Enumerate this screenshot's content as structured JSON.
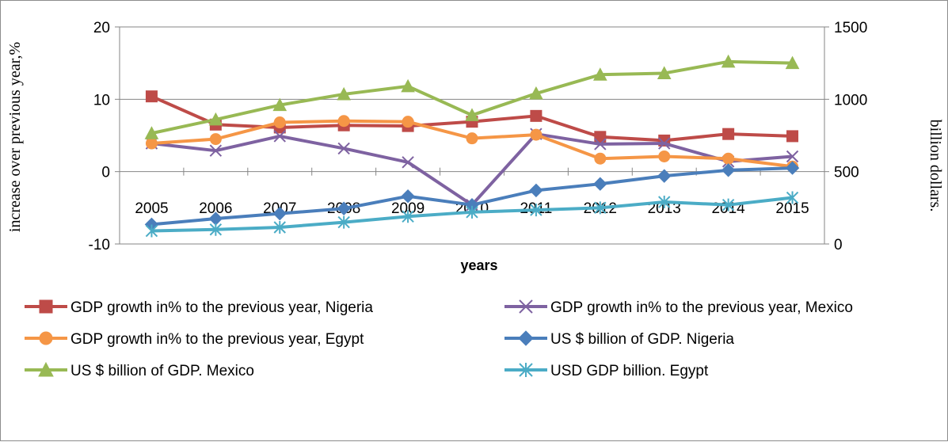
{
  "chart_data": {
    "type": "line",
    "xlabel": "years",
    "ylabel_left": "increase over previous year,%",
    "ylabel_right": "billion dollars.",
    "ylim_left": [
      -10,
      20
    ],
    "yticks_left": [
      -10,
      0,
      10,
      20
    ],
    "ylim_right": [
      0,
      1500
    ],
    "yticks_right": [
      0,
      500,
      1000,
      1500
    ],
    "grid": true,
    "legend_position": "bottom",
    "categories": [
      "2005",
      "2006",
      "2007",
      "2008",
      "2009",
      "2010",
      "2011",
      "2012",
      "2013",
      "2014",
      "2015"
    ],
    "series": [
      {
        "name": "GDP growth in% to the previous year, Nigeria",
        "axis": "left",
        "color": "#BE4B48",
        "marker": "square",
        "values": [
          10.4,
          6.5,
          6.1,
          6.4,
          6.3,
          6.9,
          7.7,
          4.8,
          4.3,
          5.2,
          4.9
        ]
      },
      {
        "name": "GDP growth in% to the previous year, Mexico",
        "axis": "left",
        "color": "#7E62A1",
        "marker": "x",
        "values": [
          3.9,
          2.9,
          4.9,
          3.2,
          1.3,
          -4.6,
          5.2,
          3.8,
          3.9,
          1.4,
          2.1
        ]
      },
      {
        "name": "GDP growth in% to the previous year, Egypt",
        "axis": "left",
        "color": "#F59646",
        "marker": "circle",
        "values": [
          3.9,
          4.5,
          6.8,
          7.0,
          6.9,
          4.6,
          5.1,
          1.8,
          2.1,
          1.8,
          0.7
        ]
      },
      {
        "name": "US $ billion of GDP. Nigeria",
        "axis": "right",
        "color": "#4A7EBB",
        "marker": "diamond",
        "values": [
          135,
          175,
          210,
          245,
          330,
          270,
          370,
          415,
          470,
          510,
          525
        ]
      },
      {
        "name": "US $ billion of GDP. Mexico",
        "axis": "right",
        "color": "#98B954",
        "marker": "triangle",
        "values": [
          765,
          860,
          960,
          1035,
          1090,
          890,
          1040,
          1170,
          1180,
          1260,
          1250
        ]
      },
      {
        "name": "USD GDP billion. Egypt",
        "axis": "right",
        "color": "#4BACC6",
        "marker": "star",
        "values": [
          90,
          100,
          115,
          150,
          190,
          220,
          235,
          250,
          290,
          270,
          320
        ]
      }
    ]
  }
}
